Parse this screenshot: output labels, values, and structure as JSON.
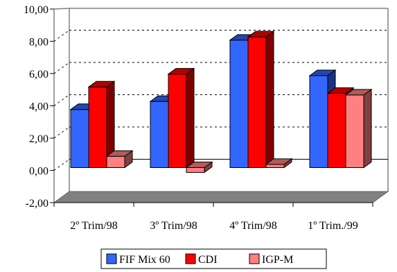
{
  "chart_data": {
    "type": "bar",
    "style": "3d-clustered-column",
    "categories": [
      "2º Trim/98",
      "3º Trim/98",
      "4º Trim/98",
      "1º Trim./99"
    ],
    "series": [
      {
        "name": "FIF Mix 60",
        "color": "#3366ff",
        "values": [
          3.6,
          4.1,
          7.9,
          5.7
        ]
      },
      {
        "name": "CDI",
        "color": "#ff0000",
        "values": [
          5.0,
          5.8,
          8.1,
          4.6
        ]
      },
      {
        "name": "IGP-M",
        "color": "#ff8080",
        "values": [
          0.7,
          -0.3,
          0.2,
          4.5
        ]
      }
    ],
    "yticks": [
      "-2,00",
      "0,00",
      "2,00",
      "4,00",
      "6,00",
      "8,00",
      "10,00"
    ],
    "ylim": [
      -2,
      10
    ],
    "grid": "dashed-horizontal",
    "legend": "bottom",
    "colors": {
      "floor": "#808080",
      "wall_border": "#808080"
    }
  }
}
